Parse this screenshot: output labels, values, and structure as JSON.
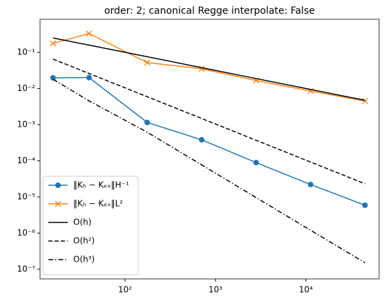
{
  "chart_data": {
    "type": "line",
    "title": "order: 2; canonical Regge interpolate: False",
    "log_x": true,
    "log_y": true,
    "x": [
      16,
      40,
      176,
      704,
      2816,
      11264,
      45056
    ],
    "series": [
      {
        "name": "‖Kₕ − Kₑₓ‖H⁻¹",
        "color": "#1f77b4",
        "dash": "solid",
        "marker": "o",
        "values": [
          0.0197,
          0.02,
          0.00115,
          0.00038,
          8.9e-05,
          2.2e-05,
          5.9e-06
        ]
      },
      {
        "name": "‖Kₕ − Kₑₓ‖L²",
        "color": "#ff7f0e",
        "dash": "solid",
        "marker": "x",
        "values": [
          0.177,
          0.33,
          0.052,
          0.035,
          0.0166,
          0.0085,
          0.0045
        ]
      },
      {
        "name": "O(h)",
        "color": "#000000",
        "dash": "solid",
        "marker": "none",
        "values": [
          0.25,
          0.158,
          0.0754,
          0.0377,
          0.0188,
          0.00942,
          0.00471
        ]
      },
      {
        "name": "O(h²)",
        "color": "#000000",
        "dash": "dashed",
        "marker": "none",
        "values": [
          0.065,
          0.026,
          0.00591,
          0.00148,
          0.000369,
          9.23e-05,
          2.31e-05
        ]
      },
      {
        "name": "O(h³)",
        "color": "#000000",
        "dash": "dashdot",
        "marker": "none",
        "values": [
          0.018,
          0.00455,
          0.000617,
          7.7e-05,
          9.6e-06,
          1.2e-06,
          1.51e-07
        ]
      }
    ],
    "xlim": [
      11.5,
      64500
    ],
    "ylim": [
      5.4e-08,
      0.82
    ],
    "xticks": [
      {
        "value": 100,
        "label": "10²"
      },
      {
        "value": 1000,
        "label": "10³"
      },
      {
        "value": 10000,
        "label": "10⁴"
      }
    ],
    "yticks": [
      {
        "value": 0.1,
        "label": "10⁻¹"
      },
      {
        "value": 0.01,
        "label": "10⁻²"
      },
      {
        "value": 0.001,
        "label": "10⁻³"
      },
      {
        "value": 0.0001,
        "label": "10⁻⁴"
      },
      {
        "value": 1e-05,
        "label": "10⁻⁵"
      },
      {
        "value": 1e-06,
        "label": "10⁻⁶"
      },
      {
        "value": 1e-07,
        "label": "10⁻⁷"
      }
    ],
    "legend": "lower left",
    "grid": false
  }
}
